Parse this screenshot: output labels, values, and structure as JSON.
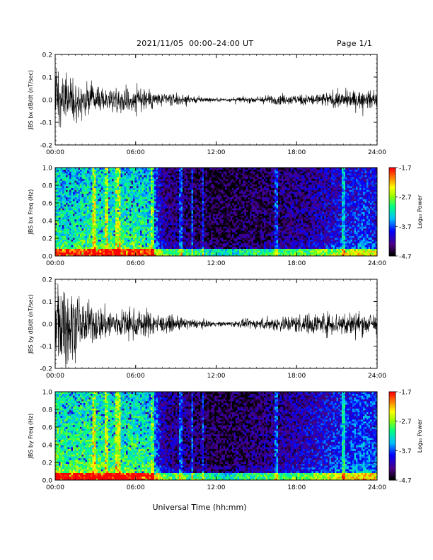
{
  "header": {
    "title": "2021/11/05  00:00–24:00 UT",
    "page": "Page 1/1"
  },
  "footer": {
    "xlabel": "Universal Time (hh:mm)"
  },
  "colors": {
    "trace": "#000000",
    "colormap": [
      "#000000",
      "#4b0082",
      "#0000ff",
      "#00bfff",
      "#00ff7f",
      "#9aff00",
      "#ffff00",
      "#ff8c00",
      "#ff0000"
    ]
  },
  "chart_data": [
    {
      "type": "line",
      "ylabel": "JBS bx dB/dt (nT/sec)",
      "xlim": [
        0,
        24
      ],
      "ylim": [
        -0.2,
        0.2
      ],
      "xticks": [
        "00:00",
        "06:00",
        "12:00",
        "18:00",
        "24:00"
      ],
      "yticks": [
        "-0.2",
        "-0.1",
        "0.0",
        "0.1",
        "0.2"
      ],
      "series": [
        {
          "x": [
            0,
            1,
            2,
            3,
            4,
            5,
            6,
            7,
            8,
            9,
            10,
            11,
            12,
            13,
            14,
            15,
            16,
            17,
            18,
            19,
            20,
            21,
            22,
            23,
            24
          ],
          "amplitude": [
            0.12,
            0.1,
            0.07,
            0.05,
            0.05,
            0.05,
            0.06,
            0.05,
            0.03,
            0.025,
            0.02,
            0.012,
            0.008,
            0.008,
            0.012,
            0.015,
            0.02,
            0.02,
            0.022,
            0.025,
            0.03,
            0.035,
            0.035,
            0.04,
            0.03
          ]
        }
      ]
    },
    {
      "type": "heatmap",
      "ylabel": "JBS bx Freq (Hz)",
      "xlim": [
        0,
        24
      ],
      "ylim": [
        0,
        1.0
      ],
      "xticks": [
        "00:00",
        "06:00",
        "12:00",
        "18:00",
        "24:00"
      ],
      "yticks": [
        "0.0",
        "0.2",
        "0.4",
        "0.6",
        "0.8",
        "1.0"
      ],
      "colorbar": {
        "label": "Log₁₀ Power",
        "range": [
          -4.7,
          -1.7
        ],
        "ticks": [
          "-1.7",
          "-2.7",
          "-3.7",
          "-4.7"
        ]
      },
      "activity": [
        0.62,
        0.55,
        0.6,
        0.62,
        0.6,
        0.6,
        0.62,
        0.58,
        0.18,
        0.14,
        0.12,
        0.08,
        0.06,
        0.06,
        0.08,
        0.1,
        0.12,
        0.13,
        0.15,
        0.17,
        0.22,
        0.26,
        0.3,
        0.34,
        0.3
      ]
    },
    {
      "type": "line",
      "ylabel": "JBS by dB/dt (nT/sec)",
      "xlim": [
        0,
        24
      ],
      "ylim": [
        -0.2,
        0.2
      ],
      "xticks": [
        "00:00",
        "06:00",
        "12:00",
        "18:00",
        "24:00"
      ],
      "yticks": [
        "-0.2",
        "-0.1",
        "0.0",
        "0.1",
        "0.2"
      ],
      "series": [
        {
          "x": [
            0,
            1,
            2,
            3,
            4,
            5,
            6,
            7,
            8,
            9,
            10,
            11,
            12,
            13,
            14,
            15,
            16,
            17,
            18,
            19,
            20,
            21,
            22,
            23,
            24
          ],
          "amplitude": [
            0.2,
            0.16,
            0.1,
            0.08,
            0.07,
            0.06,
            0.06,
            0.06,
            0.035,
            0.03,
            0.022,
            0.018,
            0.01,
            0.012,
            0.018,
            0.022,
            0.03,
            0.035,
            0.04,
            0.045,
            0.05,
            0.05,
            0.055,
            0.05,
            0.045
          ]
        }
      ]
    },
    {
      "type": "heatmap",
      "ylabel": "JBS by Freq (Hz)",
      "xlim": [
        0,
        24
      ],
      "ylim": [
        0,
        1.0
      ],
      "xticks": [
        "00:00",
        "06:00",
        "12:00",
        "18:00",
        "24:00"
      ],
      "yticks": [
        "0.0",
        "0.2",
        "0.4",
        "0.6",
        "0.8",
        "1.0"
      ],
      "colorbar": {
        "label": "Log₁₀ Power",
        "range": [
          -4.7,
          -1.7
        ],
        "ticks": [
          "-1.7",
          "-2.7",
          "-3.7",
          "-4.7"
        ]
      },
      "activity": [
        0.7,
        0.62,
        0.65,
        0.66,
        0.62,
        0.62,
        0.64,
        0.6,
        0.2,
        0.16,
        0.14,
        0.1,
        0.07,
        0.07,
        0.1,
        0.13,
        0.15,
        0.17,
        0.2,
        0.24,
        0.28,
        0.32,
        0.36,
        0.4,
        0.36
      ]
    }
  ]
}
